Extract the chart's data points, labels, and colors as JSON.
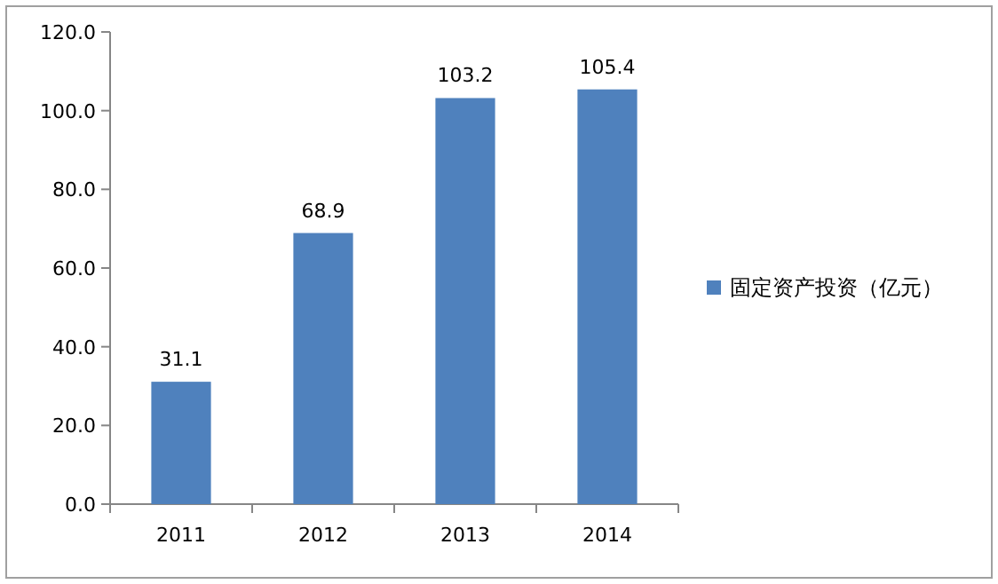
{
  "chart_data": {
    "type": "bar",
    "categories": [
      "2011",
      "2012",
      "2013",
      "2014"
    ],
    "series": [
      {
        "name": "固定资产投资（亿元）",
        "color": "#4f81bd",
        "values": [
          31.1,
          68.9,
          103.2,
          105.4
        ]
      }
    ],
    "ylim": [
      0,
      120
    ],
    "yticks": [
      {
        "value": 0,
        "label": "0.0"
      },
      {
        "value": 20,
        "label": "20.0"
      },
      {
        "value": 40,
        "label": "40.0"
      },
      {
        "value": 60,
        "label": "60.0"
      },
      {
        "value": 80,
        "label": "80.0"
      },
      {
        "value": 100,
        "label": "100.0"
      },
      {
        "value": 120,
        "label": "120.0"
      }
    ],
    "data_labels": true,
    "legend": "right"
  }
}
